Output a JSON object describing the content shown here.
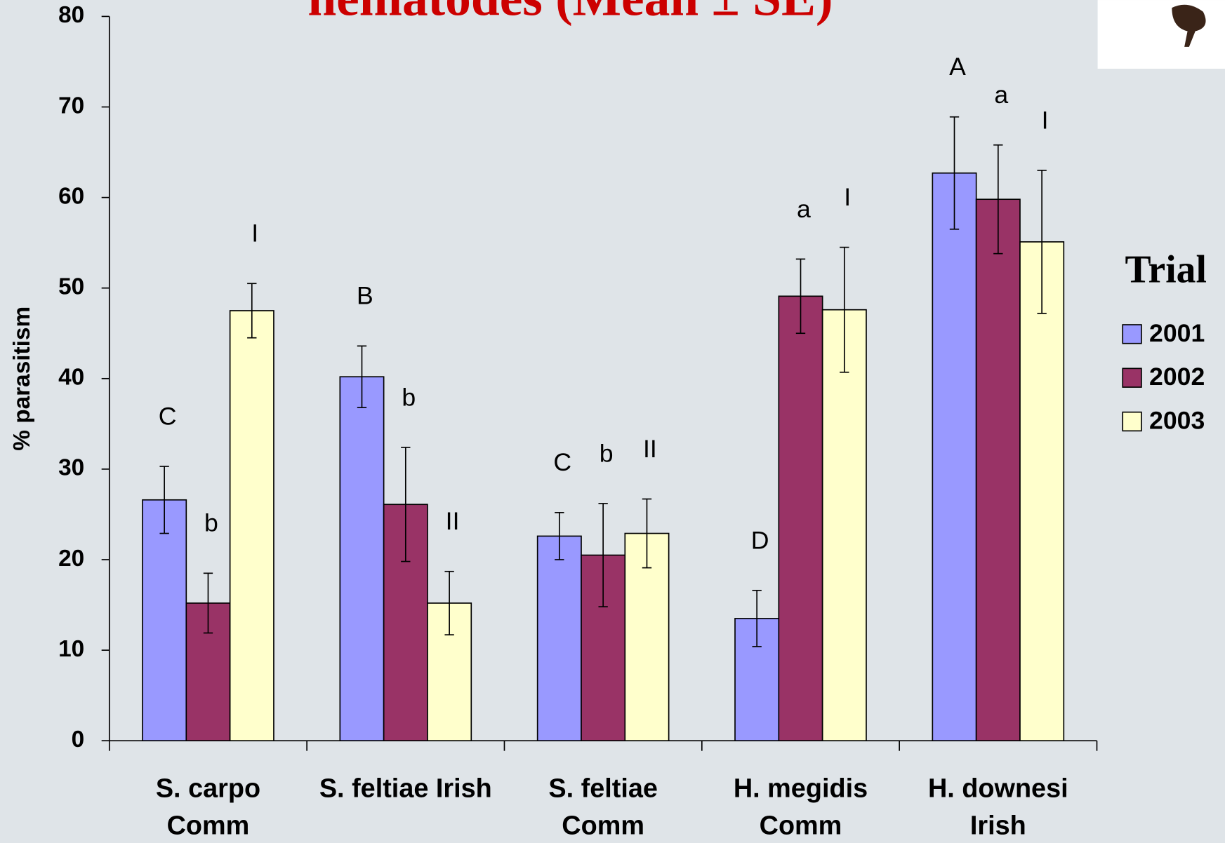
{
  "chart_data": {
    "type": "bar",
    "title": "nematodes (Mean ± SE)",
    "y_label": "% parasitism",
    "legend_title": "Trial",
    "categories": [
      [
        "S. carpo",
        "Comm"
      ],
      [
        "S. feltiae Irish"
      ],
      [
        "S. feltiae",
        "Comm"
      ],
      [
        "H. megidis",
        "Comm"
      ],
      [
        "H. downesi",
        "Irish"
      ]
    ],
    "series": [
      {
        "name": "2001",
        "color": "#9999ff",
        "values": [
          26.6,
          40.2,
          22.6,
          13.5,
          62.7
        ],
        "errors": [
          3.7,
          3.4,
          2.6,
          3.1,
          6.2
        ],
        "labels": [
          "C",
          "B",
          "C",
          "D",
          "A"
        ]
      },
      {
        "name": "2002",
        "color": "#993366",
        "values": [
          15.2,
          26.1,
          20.5,
          49.1,
          59.8
        ],
        "errors": [
          3.3,
          6.3,
          5.7,
          4.1,
          6.0
        ],
        "labels": [
          "b",
          "b",
          "b",
          "a",
          "a"
        ]
      },
      {
        "name": "2003",
        "color": "#ffffcc",
        "values": [
          47.5,
          15.2,
          22.9,
          47.6,
          55.1
        ],
        "errors": [
          3.0,
          3.5,
          3.8,
          6.9,
          7.9
        ],
        "labels": [
          "I",
          "II",
          "II",
          "I",
          "I"
        ]
      }
    ],
    "ylim": [
      0,
      80
    ],
    "yticks": [
      0,
      10,
      20,
      30,
      40,
      50,
      60,
      70,
      80
    ],
    "legend": "right"
  }
}
